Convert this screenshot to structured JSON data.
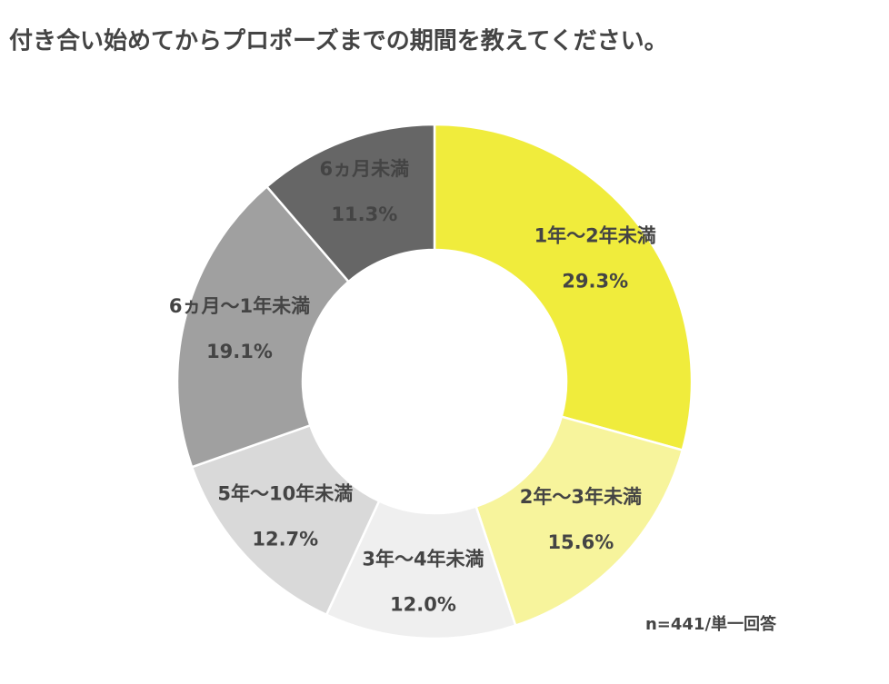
{
  "chart_data": {
    "type": "donut",
    "title": "付き合い始めてからプロポーズまでの期間を教えてください。",
    "note": "n=441/単一回答",
    "categories": [
      "1年〜2年未満",
      "2年〜3年未満",
      "3年〜4年未満",
      "5年〜10年未満",
      "6ヵ月〜1年未満",
      "6ヵ月未満"
    ],
    "values": [
      29.3,
      15.6,
      12.0,
      12.7,
      19.1,
      11.3
    ],
    "value_labels": [
      "29.3%",
      "15.6%",
      "12.0%",
      "12.7%",
      "19.1%",
      "11.3%"
    ],
    "colors": [
      "#f0ec3c",
      "#f7f49c",
      "#efefef",
      "#d9d9d9",
      "#a0a0a0",
      "#666666"
    ]
  }
}
